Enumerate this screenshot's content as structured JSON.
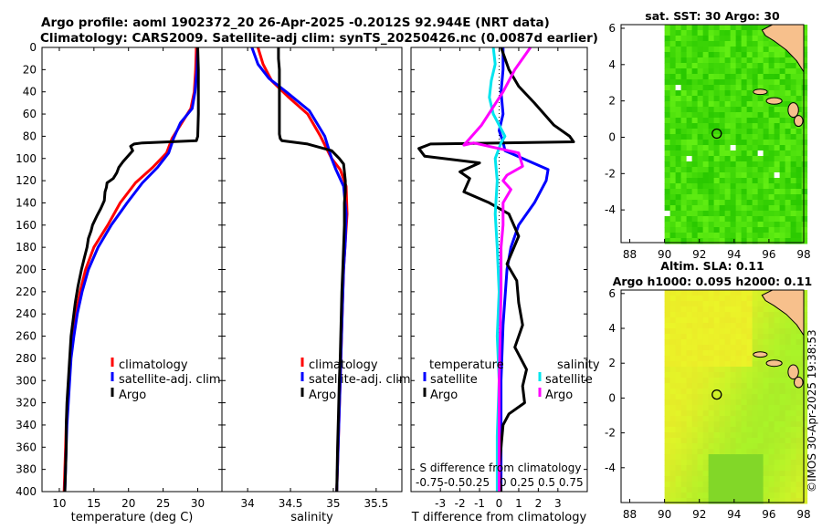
{
  "header": {
    "line1": "Argo profile: aoml 1902372_20 26-Apr-2025 -0.2012S 92.944E (NRT data)",
    "line2": "Climatology: CARS2009. Satellite-adj clim: synTS_20250426.nc (0.0087d earlier)"
  },
  "side": {
    "sst_title": "sat. SST: 30 Argo: 30",
    "sla_title1": "Altim. SLA: 0.11",
    "sla_title2": "Argo h1000: 0.095 h2000: 0.11",
    "credit": "©IMOS 30-Apr-2025 19:38:53"
  },
  "colors": {
    "climatology": "#ff0000",
    "satellite": "#0000ff",
    "argo": "#000000",
    "sat_s": "#00e5ee",
    "argo_s": "#ff00ff",
    "land": "#f7c08c"
  },
  "chart_data": [
    {
      "type": "line",
      "id": "temperature",
      "xlabel": "temperature (deg C)",
      "ylabel": "depth",
      "xlim": [
        7.5,
        33.5
      ],
      "ylim": [
        0,
        400
      ],
      "xticks": [
        10,
        15,
        20,
        25,
        30
      ],
      "yticks": [
        0,
        20,
        40,
        60,
        80,
        100,
        120,
        140,
        160,
        180,
        200,
        220,
        240,
        260,
        280,
        300,
        320,
        340,
        360,
        380,
        400
      ],
      "legend": [
        "climatology",
        "satellite-adj. clim",
        "Argo"
      ],
      "series": [
        {
          "name": "climatology",
          "color": "#ff0000",
          "points": [
            [
              29.8,
              0
            ],
            [
              29.7,
              20
            ],
            [
              29.5,
              40
            ],
            [
              29.0,
              55
            ],
            [
              27.5,
              70
            ],
            [
              26.3,
              82
            ],
            [
              25.5,
              95
            ],
            [
              23.5,
              108
            ],
            [
              21.0,
              122
            ],
            [
              18.8,
              140
            ],
            [
              17.0,
              160
            ],
            [
              15.0,
              180
            ],
            [
              13.8,
              200
            ],
            [
              13.0,
              220
            ],
            [
              12.4,
              240
            ],
            [
              11.9,
              260
            ],
            [
              11.6,
              280
            ],
            [
              11.4,
              300
            ],
            [
              11.2,
              320
            ],
            [
              11.0,
              340
            ],
            [
              10.9,
              360
            ],
            [
              10.8,
              380
            ],
            [
              10.7,
              400
            ]
          ]
        },
        {
          "name": "satellite-adj. clim",
          "color": "#0000ff",
          "points": [
            [
              30.0,
              0
            ],
            [
              29.9,
              20
            ],
            [
              29.6,
              40
            ],
            [
              29.2,
              55
            ],
            [
              27.5,
              68
            ],
            [
              26.5,
              82
            ],
            [
              25.8,
              95
            ],
            [
              24.2,
              108
            ],
            [
              22.0,
              122
            ],
            [
              19.8,
              140
            ],
            [
              17.5,
              160
            ],
            [
              15.6,
              180
            ],
            [
              14.2,
              200
            ],
            [
              13.3,
              220
            ],
            [
              12.6,
              240
            ],
            [
              12.1,
              260
            ],
            [
              11.7,
              280
            ],
            [
              11.5,
              300
            ],
            [
              11.3,
              320
            ],
            [
              11.1,
              340
            ],
            [
              11.0,
              360
            ],
            [
              10.9,
              380
            ],
            [
              10.8,
              400
            ]
          ]
        },
        {
          "name": "Argo",
          "color": "#000000",
          "points": [
            [
              30.0,
              0
            ],
            [
              30.1,
              20
            ],
            [
              30.1,
              40
            ],
            [
              30.1,
              60
            ],
            [
              30.0,
              80
            ],
            [
              29.8,
              84
            ],
            [
              22.0,
              86
            ],
            [
              20.8,
              87
            ],
            [
              20.3,
              89
            ],
            [
              20.6,
              93
            ],
            [
              19.2,
              103
            ],
            [
              18.6,
              108
            ],
            [
              18.3,
              113
            ],
            [
              17.8,
              118
            ],
            [
              16.9,
              122
            ],
            [
              16.8,
              126
            ],
            [
              16.6,
              130
            ],
            [
              16.5,
              138
            ],
            [
              16.0,
              145
            ],
            [
              15.4,
              152
            ],
            [
              14.8,
              160
            ],
            [
              14.6,
              165
            ],
            [
              14.2,
              172
            ],
            [
              14.0,
              180
            ],
            [
              13.6,
              190
            ],
            [
              13.2,
              200
            ],
            [
              12.7,
              215
            ],
            [
              12.3,
              230
            ],
            [
              12.0,
              245
            ],
            [
              11.7,
              260
            ],
            [
              11.5,
              280
            ],
            [
              11.3,
              300
            ],
            [
              11.1,
              320
            ],
            [
              11.0,
              340
            ],
            [
              11.0,
              360
            ],
            [
              10.9,
              380
            ],
            [
              10.8,
              400
            ]
          ]
        }
      ]
    },
    {
      "type": "line",
      "id": "salinity",
      "xlabel": "salinity",
      "ylabel": "depth",
      "xlim": [
        33.7,
        35.8
      ],
      "ylim": [
        0,
        400
      ],
      "xticks": [
        34,
        34.5,
        35,
        35.5
      ],
      "legend": [
        "climatology",
        "satellite-adj. clim",
        "Argo"
      ],
      "series": [
        {
          "name": "climatology",
          "color": "#ff0000",
          "points": [
            [
              34.12,
              0
            ],
            [
              34.18,
              15
            ],
            [
              34.28,
              30
            ],
            [
              34.48,
              45
            ],
            [
              34.7,
              60
            ],
            [
              34.85,
              80
            ],
            [
              34.98,
              100
            ],
            [
              35.08,
              110
            ],
            [
              35.15,
              125
            ],
            [
              35.16,
              150
            ],
            [
              35.14,
              175
            ],
            [
              35.12,
              200
            ],
            [
              35.1,
              250
            ],
            [
              35.08,
              300
            ],
            [
              35.06,
              350
            ],
            [
              35.04,
              400
            ]
          ]
        },
        {
          "name": "satellite-adj. clim",
          "color": "#0000ff",
          "points": [
            [
              34.05,
              0
            ],
            [
              34.12,
              15
            ],
            [
              34.25,
              28
            ],
            [
              34.45,
              40
            ],
            [
              34.72,
              57
            ],
            [
              34.9,
              80
            ],
            [
              34.98,
              100
            ],
            [
              35.03,
              110
            ],
            [
              35.12,
              125
            ],
            [
              35.15,
              150
            ],
            [
              35.14,
              175
            ],
            [
              35.12,
              200
            ],
            [
              35.1,
              250
            ],
            [
              35.08,
              300
            ],
            [
              35.06,
              350
            ],
            [
              35.04,
              400
            ]
          ]
        },
        {
          "name": "Argo",
          "color": "#000000",
          "points": [
            [
              34.36,
              0
            ],
            [
              34.36,
              10
            ],
            [
              34.37,
              20
            ],
            [
              34.37,
              30
            ],
            [
              34.37,
              40
            ],
            [
              34.37,
              50
            ],
            [
              34.37,
              60
            ],
            [
              34.37,
              70
            ],
            [
              34.37,
              78
            ],
            [
              34.38,
              82
            ],
            [
              34.4,
              84
            ],
            [
              34.7,
              87
            ],
            [
              34.98,
              93
            ],
            [
              35.07,
              100
            ],
            [
              35.12,
              105
            ],
            [
              35.14,
              120
            ],
            [
              35.14,
              130
            ],
            [
              35.13,
              140
            ],
            [
              35.13,
              160
            ],
            [
              35.12,
              180
            ],
            [
              35.11,
              200
            ],
            [
              35.1,
              220
            ],
            [
              35.09,
              250
            ],
            [
              35.08,
              280
            ],
            [
              35.07,
              300
            ],
            [
              35.06,
              330
            ],
            [
              35.05,
              360
            ],
            [
              35.04,
              400
            ]
          ]
        }
      ]
    },
    {
      "type": "line",
      "id": "difference",
      "xlabel": "T difference from climatology",
      "xlabel_top": "S difference from climatology",
      "xlim": [
        -4.5,
        4.5
      ],
      "ylim": [
        0,
        400
      ],
      "xticks": [
        -3,
        -2,
        -1,
        0,
        1,
        2,
        3
      ],
      "sticks": [
        "-0.75",
        "-0.5",
        "0.25",
        "0",
        "0.25",
        "0.5",
        "0.75"
      ],
      "legend_left_title": "temperature",
      "legend_right_title": "salinity",
      "legend_left": [
        "satellite",
        "Argo"
      ],
      "legend_right": [
        "satellite",
        "Argo"
      ],
      "series": [
        {
          "name": "temperature satellite",
          "color": "#0000ff",
          "points": [
            [
              0.2,
              0
            ],
            [
              0.2,
              20
            ],
            [
              0.1,
              40
            ],
            [
              0.2,
              60
            ],
            [
              0.0,
              75
            ],
            [
              0.2,
              85
            ],
            [
              0.3,
              93
            ],
            [
              2.5,
              110
            ],
            [
              2.4,
              120
            ],
            [
              1.8,
              140
            ],
            [
              1.0,
              160
            ],
            [
              0.6,
              180
            ],
            [
              0.4,
              200
            ],
            [
              0.2,
              250
            ],
            [
              0.1,
              300
            ],
            [
              0.1,
              350
            ],
            [
              0.1,
              400
            ]
          ]
        },
        {
          "name": "temperature Argo",
          "color": "#000000",
          "points": [
            [
              0.1,
              0
            ],
            [
              0.5,
              20
            ],
            [
              1.0,
              35
            ],
            [
              1.8,
              50
            ],
            [
              2.8,
              70
            ],
            [
              3.6,
              80
            ],
            [
              3.8,
              85
            ],
            [
              -3.5,
              87
            ],
            [
              -4.1,
              91
            ],
            [
              -3.8,
              98
            ],
            [
              -1.0,
              104
            ],
            [
              -2.0,
              112
            ],
            [
              -1.5,
              118
            ],
            [
              -1.8,
              130
            ],
            [
              -0.5,
              140
            ],
            [
              0.5,
              150
            ],
            [
              1.0,
              170
            ],
            [
              0.4,
              195
            ],
            [
              0.9,
              210
            ],
            [
              1.0,
              230
            ],
            [
              1.2,
              250
            ],
            [
              0.8,
              270
            ],
            [
              1.4,
              290
            ],
            [
              1.2,
              305
            ],
            [
              1.3,
              320
            ],
            [
              0.5,
              330
            ],
            [
              0.2,
              340
            ],
            [
              0.1,
              360
            ],
            [
              0.0,
              380
            ],
            [
              0.1,
              400
            ]
          ]
        },
        {
          "name": "salinity satellite",
          "color": "#00e5ee",
          "points": [
            [
              -0.3,
              0
            ],
            [
              -0.2,
              15
            ],
            [
              -0.4,
              30
            ],
            [
              -0.5,
              45
            ],
            [
              -0.3,
              60
            ],
            [
              0.3,
              80
            ],
            [
              0.1,
              86
            ],
            [
              -0.2,
              100
            ],
            [
              -0.1,
              120
            ],
            [
              -0.2,
              150
            ],
            [
              -0.1,
              180
            ],
            [
              0.0,
              220
            ],
            [
              -0.1,
              260
            ],
            [
              0.0,
              300
            ],
            [
              -0.1,
              350
            ],
            [
              -0.1,
              400
            ]
          ]
        },
        {
          "name": "salinity Argo",
          "color": "#ff00ff",
          "points": [
            [
              1.6,
              0
            ],
            [
              1.2,
              10
            ],
            [
              0.8,
              20
            ],
            [
              0.2,
              40
            ],
            [
              -0.9,
              70
            ],
            [
              -1.8,
              88
            ],
            [
              -1.3,
              86
            ],
            [
              1.0,
              95
            ],
            [
              1.2,
              107
            ],
            [
              0.4,
              115
            ],
            [
              0.2,
              120
            ],
            [
              0.6,
              128
            ],
            [
              0.2,
              140
            ],
            [
              0.2,
              160
            ],
            [
              0.1,
              180
            ],
            [
              0.1,
              220
            ],
            [
              0.0,
              300
            ],
            [
              0.0,
              360
            ],
            [
              0.0,
              400
            ]
          ]
        }
      ]
    },
    {
      "type": "heatmap",
      "id": "sst_map",
      "title": "sat. SST: 30 Argo: 30",
      "xlim": [
        87.5,
        98
      ],
      "ylim": [
        -5.8,
        6.2
      ],
      "xticks": [
        88,
        90,
        92,
        94,
        96,
        98
      ],
      "yticks": [
        -4,
        -2,
        0,
        2,
        4,
        6
      ],
      "profile_location": [
        93.0,
        0.2
      ]
    },
    {
      "type": "heatmap",
      "id": "sla_map",
      "title": "Altim. SLA: 0.11",
      "xlim": [
        87.5,
        98
      ],
      "ylim": [
        -6.0,
        6.2
      ],
      "xticks": [
        88,
        90,
        92,
        94,
        96,
        98
      ],
      "yticks": [
        -4,
        -2,
        0,
        2,
        4,
        6
      ],
      "profile_location": [
        93.0,
        0.2
      ]
    }
  ]
}
